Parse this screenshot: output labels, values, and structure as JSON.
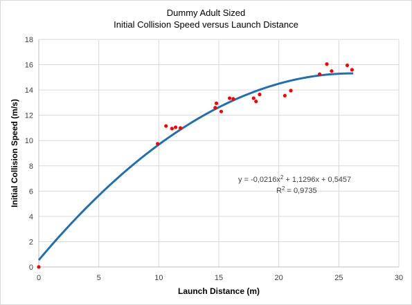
{
  "chart_data": {
    "type": "scatter",
    "title": "Dummy Adult Sized",
    "subtitle": "Initial Collision  Speed versus Launch Distance",
    "xlabel": "Launch Distance (m)",
    "ylabel": "Initial Collision Speed (m/s)",
    "xlim": [
      0,
      30
    ],
    "ylim": [
      0,
      18
    ],
    "xticks": [
      0,
      5,
      10,
      15,
      20,
      25,
      30
    ],
    "yticks": [
      0,
      2,
      4,
      6,
      8,
      10,
      12,
      14,
      16,
      18
    ],
    "grid": true,
    "series": [
      {
        "points": [
          [
            0.0,
            0.0
          ],
          [
            9.9,
            9.75
          ],
          [
            10.6,
            11.15
          ],
          [
            11.1,
            10.95
          ],
          [
            11.4,
            11.05
          ],
          [
            11.8,
            11.0
          ],
          [
            14.8,
            12.95
          ],
          [
            14.7,
            12.6
          ],
          [
            15.2,
            12.3
          ],
          [
            15.9,
            13.35
          ],
          [
            16.2,
            13.3
          ],
          [
            17.9,
            13.35
          ],
          [
            18.1,
            13.1
          ],
          [
            18.4,
            13.65
          ],
          [
            20.5,
            13.55
          ],
          [
            21.0,
            13.95
          ],
          [
            23.4,
            15.25
          ],
          [
            24.0,
            16.05
          ],
          [
            24.4,
            15.5
          ],
          [
            25.7,
            15.95
          ],
          [
            26.1,
            15.6
          ]
        ],
        "color": "#ff0000"
      }
    ],
    "trendline": {
      "kind": "polynomial",
      "coefficients": [
        -0.0216,
        1.1296,
        0.5457
      ],
      "x_range": [
        0,
        26.2
      ],
      "color": "#1f6fb4"
    },
    "equation": {
      "prefix": "y = -0,0216x",
      "sup": "2",
      "suffix": " + 1,1296x + 0,5457",
      "r2_prefix": "R",
      "r2_sup": "2",
      "r2_suffix": " = 0,9735"
    }
  }
}
